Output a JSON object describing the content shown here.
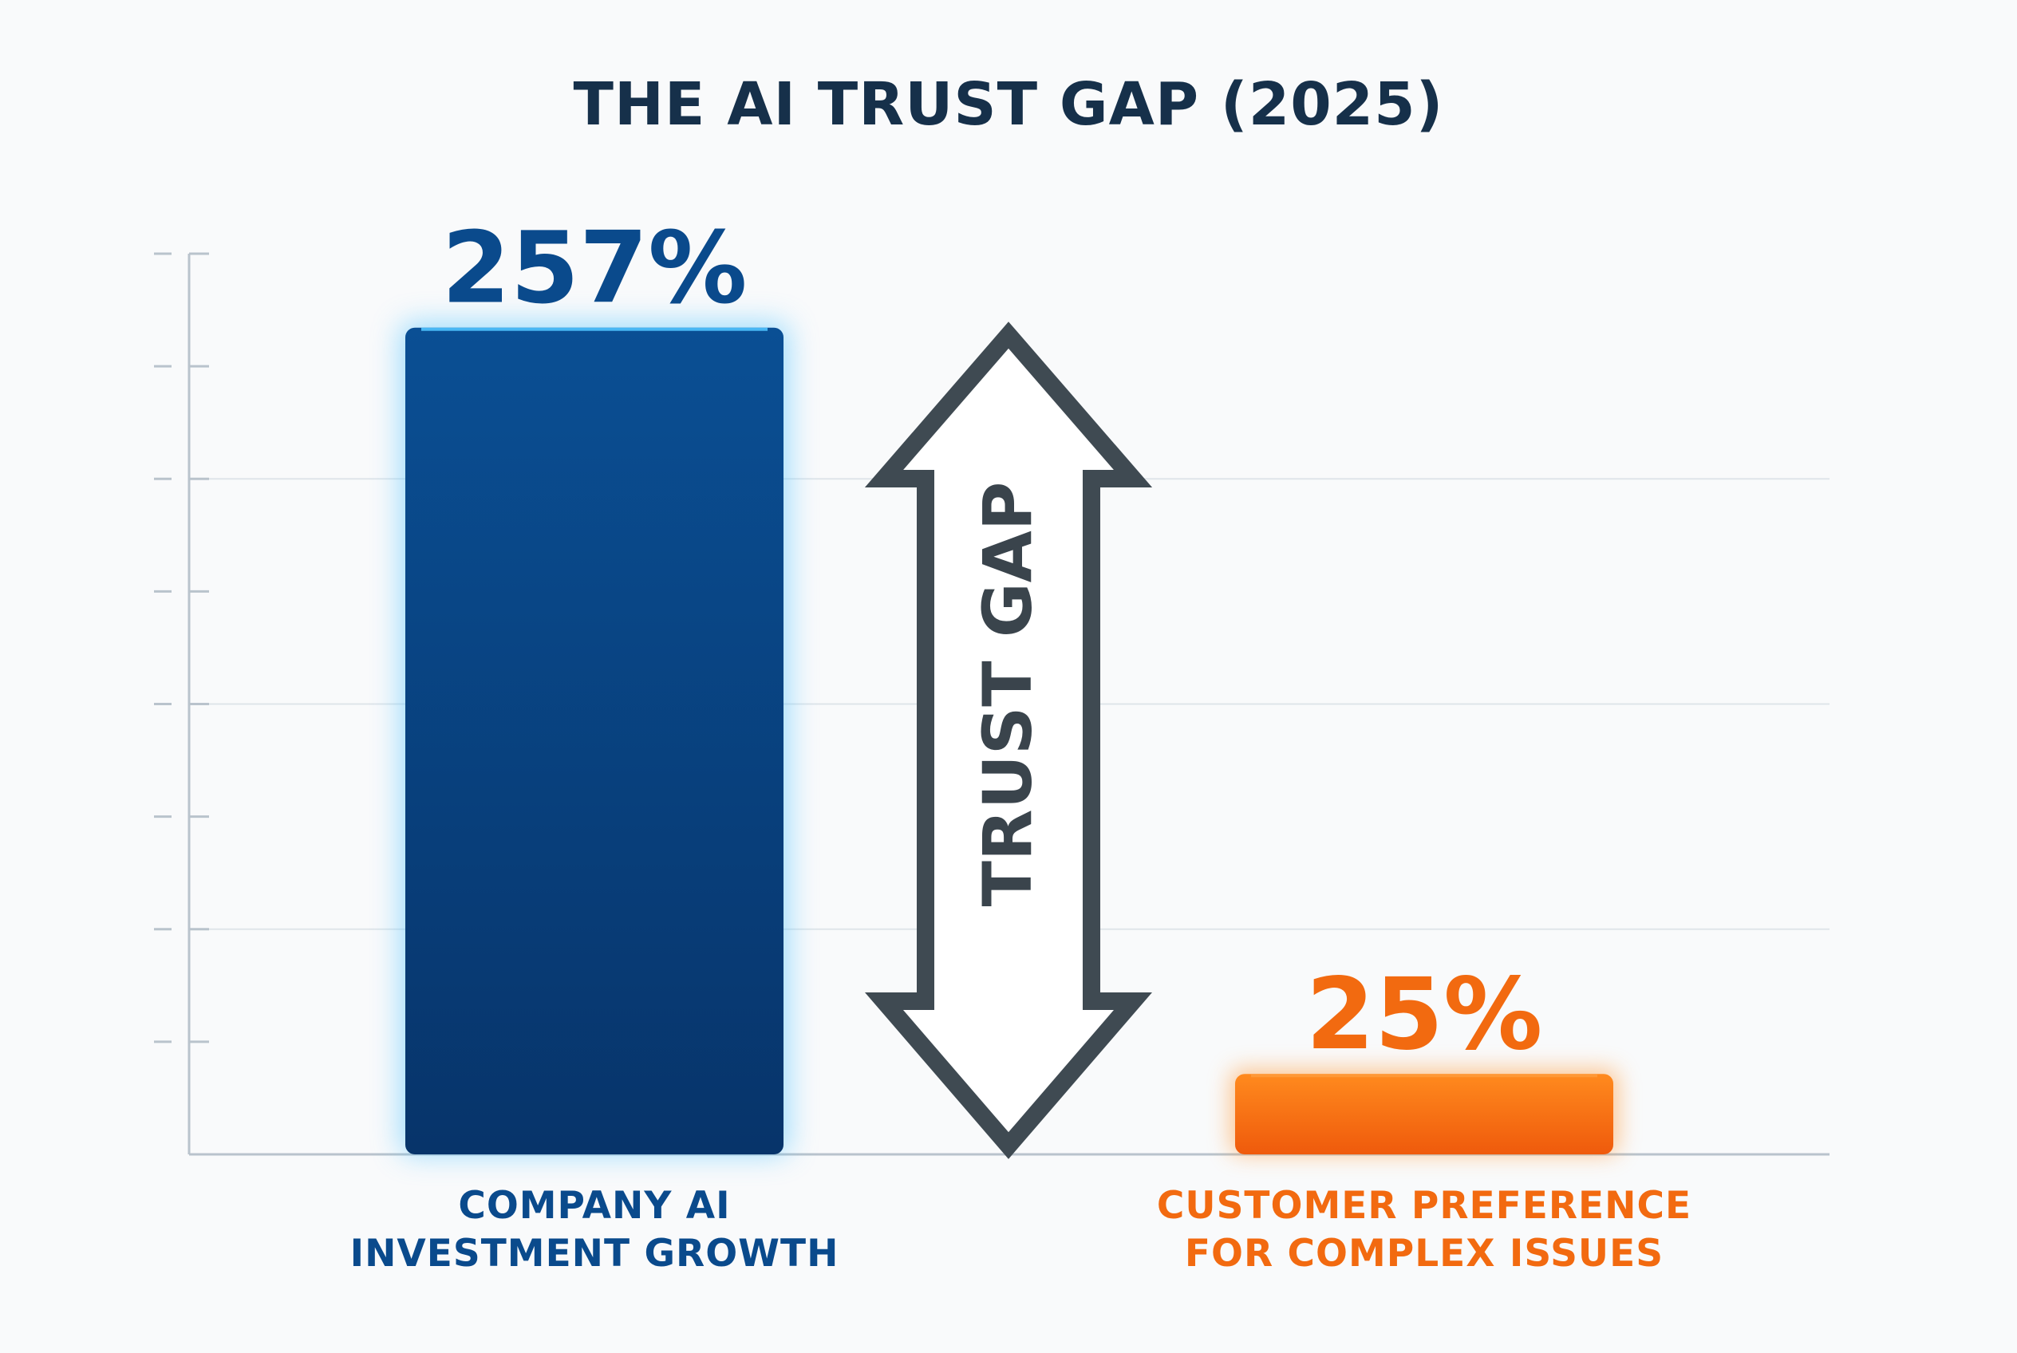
{
  "chart_data": {
    "type": "bar",
    "title": "THE AI TRUST GAP (2025)",
    "categories": [
      "COMPANY AI\nINVESTMENT GROWTH",
      "CUSTOMER PREFERENCE\nFOR COMPLEX ISSUES"
    ],
    "category_lines": [
      [
        "COMPANY AI",
        "INVESTMENT GROWTH"
      ],
      [
        "CUSTOMER PREFERENCE",
        "FOR COMPLEX ISSUES"
      ]
    ],
    "values": [
      257,
      25
    ],
    "data_labels": [
      "257%",
      "25%"
    ],
    "colors": [
      "#0a4a8c",
      "#f26a10"
    ],
    "ylim": [
      0,
      280
    ],
    "ytick_count": 8,
    "grid": true,
    "xlabel": "",
    "ylabel": "",
    "annotation": {
      "text": "TRUST GAP",
      "icon": "double-arrow-vertical",
      "color": "#3f4a52"
    }
  }
}
